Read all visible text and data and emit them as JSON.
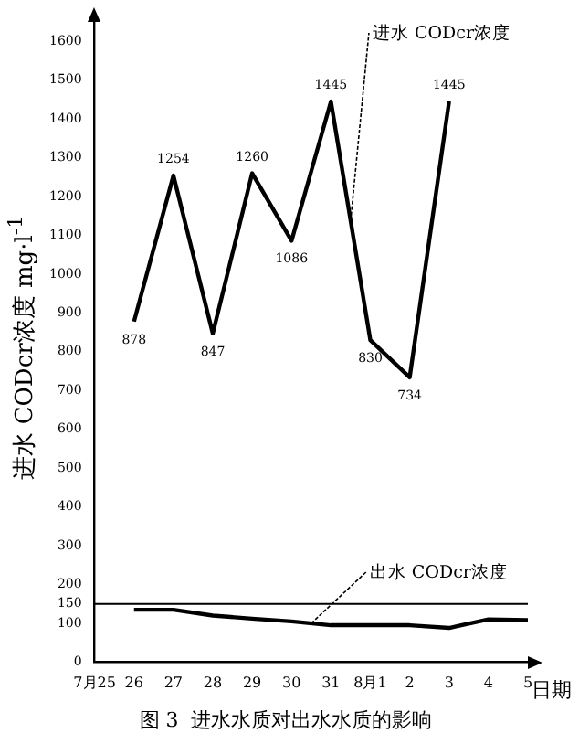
{
  "chart_data": {
    "type": "line",
    "title": "图 3  进水水质对出水水质的影响",
    "xlabel": "日期",
    "ylabel": "进水 CODcr浓度  mg·l$^{-1}$",
    "categories": [
      "7月25",
      "26",
      "27",
      "28",
      "29",
      "30",
      "31",
      "8月1",
      "2",
      "3",
      "4",
      "5"
    ],
    "series": [
      {
        "name": "进水 CODcr浓度",
        "color": "#000000",
        "values": [
          null,
          878,
          1254,
          847,
          1260,
          1086,
          1445,
          830,
          734,
          1445,
          null,
          null
        ],
        "value_labels": [
          null,
          "878",
          "1254",
          "847",
          "1260",
          "1086",
          "1445",
          "830",
          "734",
          "1445",
          null,
          null
        ]
      },
      {
        "name": "出水 CODcr浓度",
        "color": "#000000",
        "values": [
          null,
          135,
          135,
          120,
          112,
          105,
          95,
          95,
          95,
          88,
          110,
          108
        ]
      }
    ],
    "ylim": [
      0,
      1650
    ],
    "yticks": [
      0,
      100,
      150,
      200,
      300,
      400,
      500,
      600,
      700,
      800,
      900,
      1000,
      1100,
      1200,
      1300,
      1400,
      1500,
      1600
    ],
    "ref_lines": [
      {
        "axis": "y",
        "value": 150,
        "color": "#000000"
      }
    ],
    "grid": false,
    "legend": false,
    "marker": "none",
    "line_style": "solid"
  }
}
